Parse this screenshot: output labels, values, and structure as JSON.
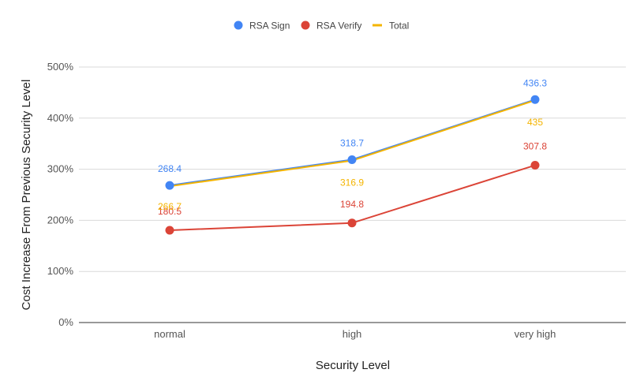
{
  "chart_data": {
    "type": "line",
    "categories": [
      "normal",
      "high",
      "very high"
    ],
    "series": [
      {
        "name": "RSA Sign",
        "values": [
          268.4,
          318.7,
          436.3
        ],
        "color": "#4285f4",
        "marker": "circle",
        "labels": [
          "268.4",
          "318.7",
          "436.3"
        ]
      },
      {
        "name": "RSA Verify",
        "values": [
          180.5,
          194.8,
          307.8
        ],
        "color": "#db4437",
        "marker": "circle",
        "labels": [
          "180.5",
          "194.8",
          "307.8"
        ]
      },
      {
        "name": "Total",
        "values": [
          266.7,
          316.9,
          435
        ],
        "color": "#f4b400",
        "marker": "none",
        "labels": [
          "266.7",
          "316.9",
          "435"
        ]
      }
    ],
    "xlabel": "Security Level",
    "ylabel": "Cost Increase From Previous Security Level",
    "ylim": [
      0,
      500
    ],
    "yticks": [
      0,
      100,
      200,
      300,
      400,
      500
    ],
    "ytick_labels": [
      "0%",
      "100%",
      "200%",
      "300%",
      "400%",
      "500%"
    ],
    "grid": true,
    "legend_position": "top-center"
  }
}
